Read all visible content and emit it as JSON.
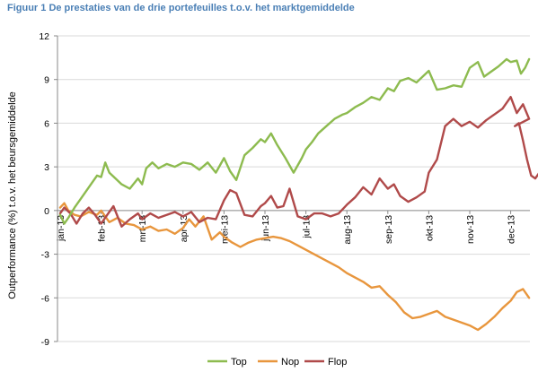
{
  "figure_title": "Figuur 1 De prestaties van de drie portefeuilles t.o.v. het marktgemiddelde",
  "chart_data": {
    "type": "line",
    "title": "",
    "xlabel": "",
    "ylabel": "Outperformance (%) t.o.v. het beursgemiddelde",
    "ylim": [
      -9,
      12
    ],
    "yticks": [
      -9,
      -6,
      -3,
      0,
      3,
      6,
      9,
      12
    ],
    "ytick_labels": [
      "-9",
      "-6",
      "-3",
      "0",
      "3",
      "6",
      "9",
      "12"
    ],
    "xtick_labels": [
      "jan-13",
      "feb-13",
      "mrt-13",
      "apr-13",
      "mei-13",
      "jun-13",
      "jul-13",
      "aug-13",
      "sep-13",
      "okt-13",
      "nov-13",
      "dec-13"
    ],
    "grid": true,
    "legend_position": "bottom",
    "x_months_range": [
      0,
      11.5
    ],
    "series": [
      {
        "name": "Top",
        "color": "#8dbb4f",
        "x": [
          0,
          0.1,
          0.2,
          0.35,
          0.5,
          0.7,
          0.9,
          1.0,
          1.1,
          1.2,
          1.35,
          1.5,
          1.7,
          1.9,
          2.0,
          2.1,
          2.25,
          2.4,
          2.6,
          2.8,
          3.0,
          3.2,
          3.4,
          3.6,
          3.8,
          4.0,
          4.15,
          4.3,
          4.5,
          4.7,
          4.9,
          5.0,
          5.15,
          5.3,
          5.5,
          5.7,
          5.9,
          6.0,
          6.15,
          6.3,
          6.5,
          6.7,
          6.9,
          7.0,
          7.2,
          7.4,
          7.6,
          7.8,
          8.0,
          8.15,
          8.3,
          8.5,
          8.7,
          9.0,
          9.2,
          9.4,
          9.6,
          9.8,
          10.0,
          10.2,
          10.35,
          10.5,
          10.7,
          10.9,
          11.0,
          11.15,
          11.25,
          11.35,
          11.45
        ],
        "y": [
          -0.3,
          -0.9,
          -0.5,
          0.2,
          0.8,
          1.6,
          2.4,
          2.3,
          3.3,
          2.6,
          2.2,
          1.8,
          1.5,
          2.2,
          1.8,
          2.9,
          3.3,
          2.9,
          3.2,
          3.0,
          3.3,
          3.2,
          2.8,
          3.3,
          2.6,
          3.6,
          2.7,
          2.1,
          3.8,
          4.3,
          4.9,
          4.7,
          5.3,
          4.5,
          3.6,
          2.6,
          3.6,
          4.2,
          4.7,
          5.3,
          5.8,
          6.3,
          6.6,
          6.7,
          7.1,
          7.4,
          7.8,
          7.6,
          8.4,
          8.2,
          8.9,
          9.1,
          8.8,
          9.6,
          8.3,
          8.4,
          8.6,
          8.5,
          9.8,
          10.2,
          9.2,
          9.5,
          9.9,
          10.4,
          10.2,
          10.3,
          9.4,
          9.8,
          10.4
        ]
      },
      {
        "name": "Nop",
        "color": "#e8963d",
        "x": [
          0,
          0.1,
          0.2,
          0.35,
          0.5,
          0.7,
          0.9,
          1.0,
          1.2,
          1.4,
          1.6,
          1.8,
          2.0,
          2.2,
          2.4,
          2.6,
          2.8,
          3.0,
          3.15,
          3.3,
          3.5,
          3.7,
          3.9,
          4.0,
          4.2,
          4.4,
          4.6,
          4.8,
          5.0,
          5.2,
          5.4,
          5.6,
          5.8,
          6.0,
          6.2,
          6.4,
          6.6,
          6.8,
          7.0,
          7.2,
          7.4,
          7.6,
          7.8,
          8.0,
          8.2,
          8.4,
          8.6,
          8.8,
          9.0,
          9.2,
          9.4,
          9.6,
          9.8,
          10.0,
          10.2,
          10.4,
          10.6,
          10.8,
          11.0,
          11.15,
          11.3,
          11.45
        ],
        "y": [
          0.2,
          0.5,
          0.0,
          -0.3,
          -0.4,
          -0.1,
          -0.3,
          0.0,
          -0.8,
          -0.5,
          -0.9,
          -1.0,
          -1.3,
          -1.1,
          -1.4,
          -1.3,
          -1.6,
          -1.2,
          -0.6,
          -1.1,
          -0.4,
          -2.0,
          -1.5,
          -1.8,
          -2.2,
          -2.5,
          -2.2,
          -2.0,
          -1.9,
          -1.8,
          -1.9,
          -2.1,
          -2.4,
          -2.7,
          -3.0,
          -3.3,
          -3.6,
          -3.9,
          -4.3,
          -4.6,
          -4.9,
          -5.3,
          -5.2,
          -5.8,
          -6.3,
          -7.0,
          -7.4,
          -7.3,
          -7.1,
          -6.9,
          -7.3,
          -7.5,
          -7.7,
          -7.9,
          -8.2,
          -7.8,
          -7.3,
          -6.7,
          -6.2,
          -5.6,
          -5.4,
          -6.0
        ]
      },
      {
        "name": "Flop",
        "color": "#b04a4a",
        "x": [
          0,
          0.1,
          0.25,
          0.4,
          0.55,
          0.7,
          0.85,
          1.0,
          1.15,
          1.3,
          1.5,
          1.7,
          1.9,
          2.0,
          2.2,
          2.4,
          2.6,
          2.8,
          3.0,
          3.2,
          3.4,
          3.6,
          3.8,
          4.0,
          4.15,
          4.3,
          4.5,
          4.7,
          4.9,
          5.0,
          5.15,
          5.3,
          5.45,
          5.6,
          5.8,
          6.0,
          6.2,
          6.4,
          6.6,
          6.8,
          7.0,
          7.2,
          7.4,
          7.6,
          7.8,
          8.0,
          8.15,
          8.3,
          8.5,
          8.7,
          8.9,
          9.0,
          9.2,
          9.4,
          9.6,
          9.8,
          10.0,
          10.2,
          10.4,
          10.6,
          10.8,
          11.0,
          11.15,
          11.3,
          11.45
        ],
        "y": [
          -0.2,
          0.2,
          -0.2,
          -0.9,
          -0.2,
          0.2,
          -0.3,
          -0.9,
          -0.3,
          0.3,
          -1.1,
          -0.6,
          -0.2,
          -0.6,
          -0.2,
          -0.5,
          -0.3,
          -0.1,
          -0.4,
          -0.1,
          -0.8,
          -0.5,
          -0.6,
          0.7,
          1.4,
          1.2,
          -0.3,
          -0.4,
          0.3,
          0.5,
          1.0,
          0.2,
          0.3,
          1.5,
          -0.4,
          -0.6,
          -0.2,
          -0.2,
          -0.4,
          -0.2,
          0.4,
          0.9,
          1.6,
          1.1,
          2.2,
          1.5,
          1.8,
          1.0,
          0.6,
          0.9,
          1.3,
          2.6,
          3.5,
          5.8,
          6.3,
          5.8,
          6.1,
          5.7,
          6.2,
          6.6,
          7.0,
          7.8,
          6.7,
          7.3,
          6.3
        ]
      }
    ],
    "flop_tail": {
      "x": [
        11.0,
        11.1,
        11.2,
        11.3,
        11.4,
        11.5,
        11.6,
        11.7,
        11.8,
        11.9,
        12.0,
        12.1,
        12.2
      ],
      "y": [
        6.3,
        5.8,
        6.0,
        4.8,
        3.5,
        2.4,
        2.2,
        2.6,
        1.5,
        1.4,
        2.2,
        1.8,
        1.9
      ]
    }
  },
  "legend": [
    {
      "label": "Top",
      "color": "#8dbb4f"
    },
    {
      "label": "Nop",
      "color": "#e8963d"
    },
    {
      "label": "Flop",
      "color": "#b04a4a"
    }
  ]
}
